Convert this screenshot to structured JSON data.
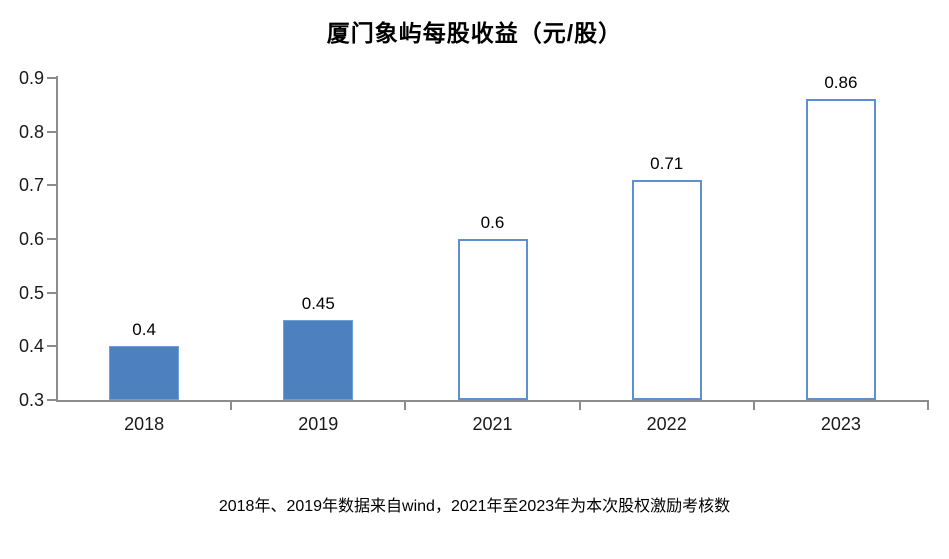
{
  "chart_data": {
    "type": "bar",
    "title": "厦门象屿每股收益（元/股）",
    "categories": [
      "2018",
      "2019",
      "2021",
      "2022",
      "2023"
    ],
    "values": [
      0.4,
      0.45,
      0.6,
      0.71,
      0.86
    ],
    "data_labels": [
      "0.4",
      "0.45",
      "0.6",
      "0.71",
      "0.86"
    ],
    "bar_styles": [
      "solid",
      "solid",
      "hollow",
      "hollow",
      "hollow"
    ],
    "ylim": [
      0.3,
      0.9
    ],
    "ytick_labels": [
      "0.9",
      "0.8",
      "0.7",
      "0.6",
      "0.5",
      "0.4",
      "0.3"
    ],
    "ytick_values": [
      0.9,
      0.8,
      0.7,
      0.6,
      0.5,
      0.4,
      0.3
    ],
    "grid": false,
    "legend_position": "none",
    "colors": {
      "solid_fill": "#4D80BE",
      "solid_border": "#6FA0D6",
      "hollow_fill": "#FFFFFF",
      "hollow_border": "#5E8FD1",
      "axis": "#8C8C8C",
      "text": "#000000"
    }
  },
  "caption": "2018年、2019年数据来自wind，2021年至2023年为本次股权激励考核数"
}
